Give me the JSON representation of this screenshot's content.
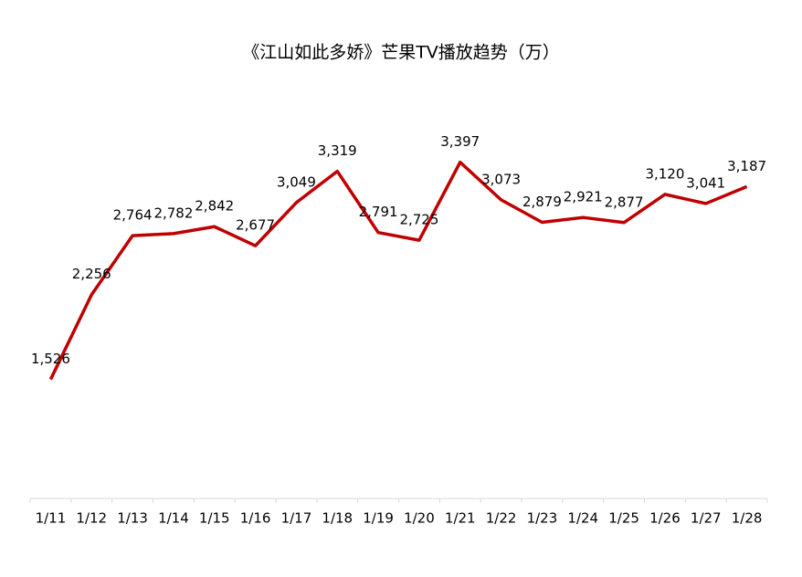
{
  "chart_data": {
    "type": "line",
    "title": "《江山如此多娇》芒果TV播放趋势（万）",
    "categories": [
      "1/11",
      "1/12",
      "1/13",
      "1/14",
      "1/15",
      "1/16",
      "1/17",
      "1/18",
      "1/19",
      "1/20",
      "1/21",
      "1/22",
      "1/23",
      "1/24",
      "1/25",
      "1/26",
      "1/27",
      "1/28"
    ],
    "series": [
      {
        "color": "#c00000",
        "values": [
          1526,
          2256,
          2764,
          2782,
          2842,
          2677,
          3049,
          3319,
          2791,
          2725,
          3397,
          3073,
          2879,
          2921,
          2877,
          3120,
          3041,
          3187
        ],
        "value_labels": [
          "1,526",
          "2,256",
          "2,764",
          "2,782",
          "2,842",
          "2,677",
          "3,049",
          "3,319",
          "2,791",
          "2,725",
          "3,397",
          "3,073",
          "2,879",
          "2,921",
          "2,877",
          "3,120",
          "3,041",
          "3,187"
        ]
      }
    ],
    "ylim": [
      500,
      4000
    ]
  }
}
